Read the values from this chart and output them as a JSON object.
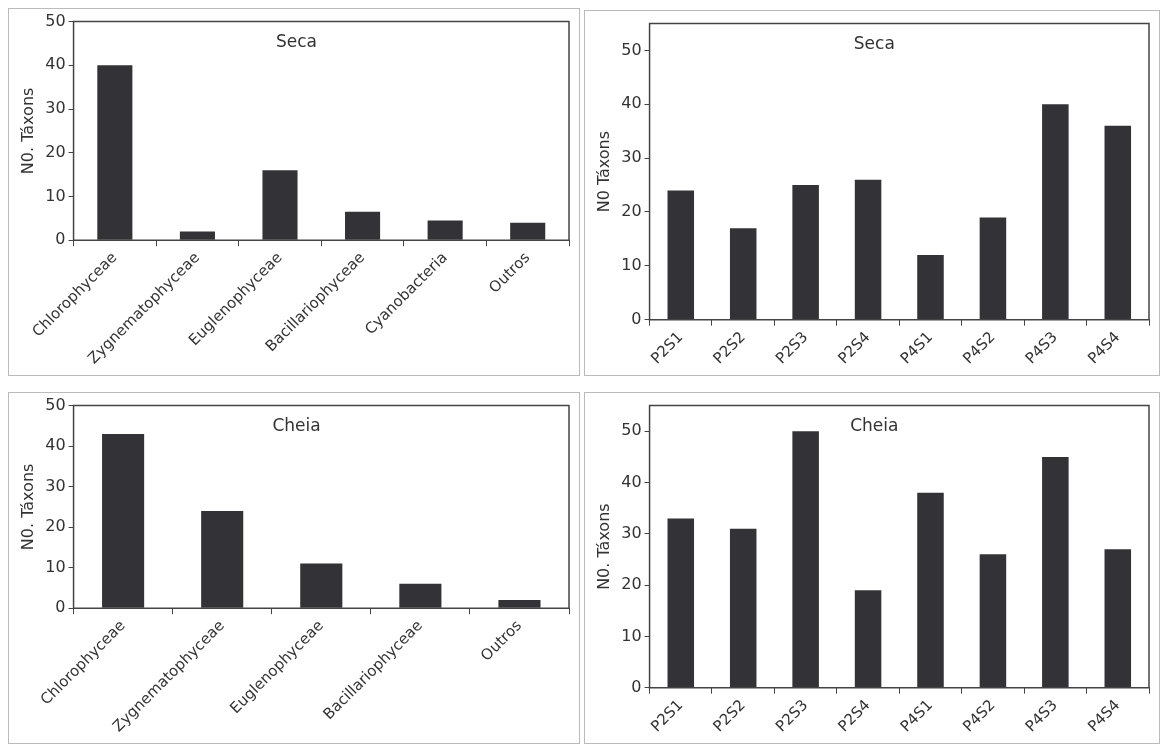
{
  "chart_data": [
    {
      "type": "bar",
      "title": "Seca",
      "ylabel": "N0. Táxons",
      "categories": [
        "Chlorophyceae",
        "Zygnematophyceae",
        "Euglenophyceae",
        "Bacillariophyceae",
        "Cyanobacteria",
        "Outros"
      ],
      "values": [
        40,
        2,
        16,
        6.5,
        4.5,
        4
      ],
      "color": "#333337",
      "ylim": [
        0,
        50
      ],
      "yticks": [
        0,
        10,
        20,
        30,
        40,
        50
      ],
      "grid": false,
      "legend": false
    },
    {
      "type": "bar",
      "title": "Seca",
      "ylabel": "N0 Táxons",
      "categories": [
        "P2S1",
        "P2S2",
        "P2S3",
        "P2S4",
        "P4S1",
        "P4S2",
        "P4S3",
        "P4S4"
      ],
      "values": [
        24,
        17,
        25,
        26,
        12,
        19,
        40,
        36
      ],
      "color": "#333337",
      "ylim": [
        0,
        55
      ],
      "yticks": [
        0,
        10,
        20,
        30,
        40,
        50
      ],
      "grid": false,
      "legend": false
    },
    {
      "type": "bar",
      "title": "Cheia",
      "ylabel": "N0. Táxons",
      "categories": [
        "Chlorophyceae",
        "Zygnematophyceae",
        "Euglenophyceae",
        "Bacillariophyceae",
        "Outros"
      ],
      "values": [
        43,
        24,
        11,
        6,
        2
      ],
      "color": "#333337",
      "ylim": [
        0,
        50
      ],
      "yticks": [
        0,
        10,
        20,
        30,
        40,
        50
      ],
      "grid": false,
      "legend": false
    },
    {
      "type": "bar",
      "title": "Cheia",
      "ylabel": "N0. Táxons",
      "categories": [
        "P2S1",
        "P2S2",
        "P2S3",
        "P2S4",
        "P4S1",
        "P4S2",
        "P4S3",
        "P4S4"
      ],
      "values": [
        33,
        31,
        50,
        19,
        38,
        26,
        45,
        27
      ],
      "color": "#333337",
      "ylim": [
        0,
        55
      ],
      "yticks": [
        0,
        10,
        20,
        30,
        40,
        50
      ],
      "grid": false,
      "legend": false
    }
  ]
}
